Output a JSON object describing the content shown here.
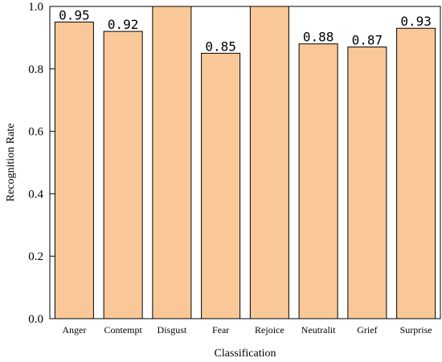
{
  "chart_data": {
    "type": "bar",
    "categories": [
      "Anger",
      "Contempt",
      "Disgust",
      "Fear",
      "Rejoice",
      "Neutralit",
      "Grief",
      "Surprise"
    ],
    "values": [
      0.95,
      0.92,
      1.0,
      0.85,
      1.0,
      0.88,
      0.87,
      0.93
    ],
    "data_labels": [
      "0.95",
      "0.92",
      "",
      "0.85",
      "",
      "0.88",
      "0.87",
      "0.93"
    ],
    "xlabel": "Classification",
    "ylabel": "Recognition Rate",
    "ylim": [
      0,
      1.0
    ],
    "yticks": [
      0.0,
      0.2,
      0.4,
      0.6,
      0.8,
      1.0
    ],
    "ytick_labels": [
      "0.0",
      "0.2",
      "0.4",
      "0.6",
      "0.8",
      "1.0"
    ],
    "grid": false,
    "bar_color": "#FAC898",
    "edge_color": "#000000"
  }
}
